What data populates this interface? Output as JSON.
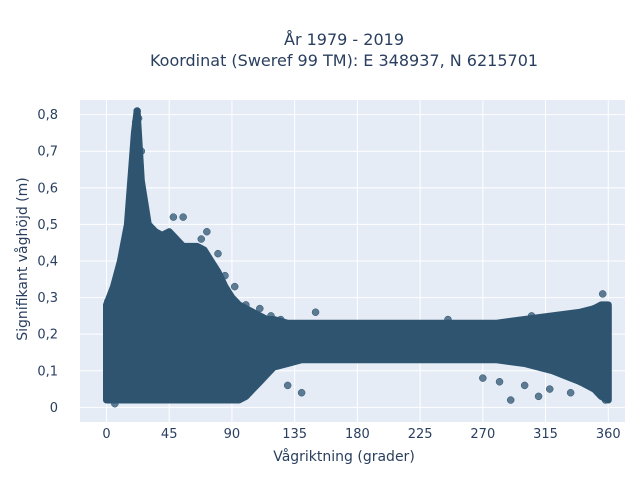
{
  "chart_data": {
    "type": "scatter",
    "title_line1": "År 1979 - 2019",
    "title_line2": "Koordinat (Sweref 99 TM): E 348937, N 6215701",
    "xlabel": "Vågriktning (grader)",
    "ylabel": "Signifikant våghöjd (m)",
    "xlim": [
      -19,
      372
    ],
    "ylim": [
      -0.04,
      0.84
    ],
    "x_ticks": [
      0,
      45,
      90,
      135,
      180,
      225,
      270,
      315,
      360
    ],
    "x_tick_labels": [
      "0",
      "45",
      "90",
      "135",
      "180",
      "225",
      "270",
      "315",
      "360"
    ],
    "y_ticks": [
      0,
      0.1,
      0.2,
      0.3,
      0.4,
      0.5,
      0.6,
      0.7,
      0.8
    ],
    "y_tick_labels": [
      "0",
      "0,1",
      "0,2",
      "0,3",
      "0,4",
      "0,5",
      "0,6",
      "0,7",
      "0,8"
    ],
    "grid": true,
    "colors": {
      "marker": "#2e5470",
      "plot_bg": "#e5ecf6",
      "grid": "#ffffff",
      "text": "#2a3f5f"
    },
    "envelope": {
      "direction": [
        0,
        5,
        10,
        15,
        20,
        22,
        25,
        30,
        35,
        40,
        45,
        50,
        55,
        60,
        65,
        70,
        75,
        80,
        85,
        90,
        95,
        100,
        105,
        110,
        115,
        120,
        130,
        140,
        150,
        160,
        170,
        180,
        200,
        220,
        240,
        260,
        280,
        300,
        320,
        340,
        350,
        355,
        360
      ],
      "lower": [
        0.02,
        0.02,
        0.02,
        0.02,
        0.02,
        0.02,
        0.02,
        0.02,
        0.02,
        0.02,
        0.02,
        0.02,
        0.02,
        0.02,
        0.02,
        0.02,
        0.02,
        0.02,
        0.02,
        0.02,
        0.02,
        0.03,
        0.05,
        0.07,
        0.09,
        0.11,
        0.12,
        0.13,
        0.13,
        0.13,
        0.13,
        0.13,
        0.13,
        0.13,
        0.13,
        0.13,
        0.13,
        0.12,
        0.1,
        0.07,
        0.05,
        0.03,
        0.02
      ],
      "upper": [
        0.28,
        0.33,
        0.4,
        0.5,
        0.75,
        0.81,
        0.62,
        0.5,
        0.48,
        0.47,
        0.48,
        0.46,
        0.44,
        0.44,
        0.44,
        0.43,
        0.4,
        0.37,
        0.33,
        0.3,
        0.28,
        0.27,
        0.26,
        0.25,
        0.24,
        0.24,
        0.23,
        0.23,
        0.23,
        0.23,
        0.23,
        0.23,
        0.23,
        0.23,
        0.23,
        0.23,
        0.23,
        0.24,
        0.25,
        0.26,
        0.27,
        0.28,
        0.28
      ]
    },
    "series": [
      {
        "x": [
          22,
          23,
          21,
          25,
          24,
          48,
          55,
          72,
          68,
          80,
          85,
          92,
          100,
          110,
          118,
          125,
          130,
          140,
          150,
          165,
          175,
          185,
          200,
          215,
          230,
          245,
          260,
          270,
          282,
          290,
          300,
          305,
          310,
          318,
          325,
          333,
          340,
          345,
          350,
          356,
          358,
          1,
          3,
          6,
          9,
          12
        ],
        "y": [
          0.81,
          0.79,
          0.78,
          0.7,
          0.66,
          0.52,
          0.52,
          0.48,
          0.46,
          0.42,
          0.36,
          0.33,
          0.28,
          0.27,
          0.25,
          0.24,
          0.06,
          0.04,
          0.26,
          0.18,
          0.21,
          0.19,
          0.18,
          0.2,
          0.17,
          0.24,
          0.19,
          0.08,
          0.07,
          0.02,
          0.06,
          0.25,
          0.03,
          0.05,
          0.12,
          0.04,
          0.07,
          0.2,
          0.27,
          0.31,
          0.02,
          0.29,
          0.05,
          0.01,
          0.3,
          0.36
        ]
      }
    ]
  }
}
